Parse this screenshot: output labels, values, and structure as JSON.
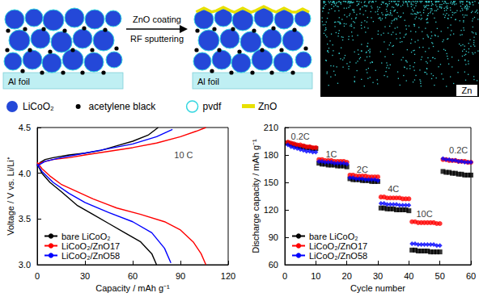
{
  "diagram": {
    "arrow_label_top": "ZnO coating",
    "arrow_label_bottom": "RF sputtering",
    "substrate_label": "Al foil",
    "map_label": "Zn",
    "legend": [
      {
        "label": "LiCoO₂",
        "color": "#2448d8"
      },
      {
        "label": "acetylene black",
        "color": "#000000"
      },
      {
        "label": "pvdf",
        "color": "#33d6e0"
      },
      {
        "label": "ZnO",
        "color": "#e8e000"
      }
    ]
  },
  "chart_data": [
    {
      "type": "line",
      "xlabel": "Capacity / mAh g⁻¹",
      "ylabel": "Voltage / V vs. Li/Li⁺",
      "xlim": [
        0,
        120
      ],
      "xticks": [
        0,
        30,
        60,
        90,
        120
      ],
      "ylim": [
        3.0,
        4.5
      ],
      "yticks": [
        {
          "value": 3.0,
          "label": "3.0"
        },
        {
          "value": 3.5,
          "label": "3.5"
        },
        {
          "value": 4.0,
          "label": "4.0"
        },
        {
          "value": 4.5,
          "label": "4.5"
        }
      ],
      "grid": false,
      "legend": "lower left",
      "annotations": [
        {
          "text": "10 C",
          "x": 92,
          "y": 4.2
        }
      ],
      "series": [
        {
          "name": "bare LiCoO₂",
          "color": "#000000",
          "x": [
            0,
            2,
            5,
            10,
            20,
            30,
            40,
            50,
            60,
            70,
            76,
            0,
            0,
            3,
            8,
            15,
            25,
            35,
            45,
            55,
            65,
            72,
            75
          ],
          "values": [
            4.08,
            4.12,
            4.15,
            4.17,
            4.2,
            4.22,
            4.25,
            4.3,
            4.35,
            4.42,
            4.5,
            null,
            4.1,
            4.0,
            3.9,
            3.8,
            3.65,
            3.55,
            3.45,
            3.35,
            3.25,
            3.12,
            3.0
          ]
        },
        {
          "name": "LiCoO₂/ZnO17",
          "color": "#ff0000",
          "x": [
            0,
            3,
            10,
            20,
            30,
            45,
            60,
            75,
            90,
            100,
            106,
            0,
            0,
            3,
            8,
            15,
            25,
            35,
            50,
            65,
            80,
            90,
            98,
            103,
            106
          ],
          "values": [
            4.1,
            4.12,
            4.15,
            4.17,
            4.2,
            4.24,
            4.28,
            4.33,
            4.4,
            4.46,
            4.5,
            null,
            4.12,
            4.05,
            3.97,
            3.88,
            3.8,
            3.72,
            3.62,
            3.55,
            3.47,
            3.38,
            3.25,
            3.12,
            3.0
          ]
        },
        {
          "name": "LiCoO₂/ZnO58",
          "color": "#0000ff",
          "x": [
            0,
            5,
            15,
            30,
            45,
            60,
            75,
            85,
            0,
            0,
            3,
            10,
            20,
            30,
            45,
            60,
            72,
            80,
            84
          ],
          "values": [
            4.08,
            4.13,
            4.17,
            4.22,
            4.27,
            4.32,
            4.4,
            4.48,
            null,
            4.1,
            4.02,
            3.9,
            3.78,
            3.68,
            3.57,
            3.47,
            3.35,
            3.18,
            3.02
          ]
        }
      ]
    },
    {
      "type": "scatter",
      "xlabel": "Cycle number",
      "ylabel": "Discharge capacity / mAh g⁻¹",
      "xlim": [
        0,
        60
      ],
      "xticks": [
        0,
        10,
        20,
        30,
        40,
        50,
        60
      ],
      "ylim": [
        60,
        210
      ],
      "yticks": [
        60,
        90,
        120,
        150,
        180,
        210
      ],
      "grid": false,
      "legend": "lower left",
      "annotations": [
        {
          "text": "0.2C",
          "x": 5,
          "y": 200
        },
        {
          "text": "1C",
          "x": 15,
          "y": 181
        },
        {
          "text": "2C",
          "x": 25,
          "y": 164
        },
        {
          "text": "4C",
          "x": 35,
          "y": 143
        },
        {
          "text": "10C",
          "x": 45,
          "y": 116
        },
        {
          "text": "0.2C",
          "x": 56,
          "y": 185
        }
      ],
      "x": [
        1,
        2,
        3,
        4,
        5,
        6,
        7,
        8,
        9,
        10,
        11,
        12,
        13,
        14,
        15,
        16,
        17,
        18,
        19,
        20,
        21,
        22,
        23,
        24,
        25,
        26,
        27,
        28,
        29,
        30,
        31,
        32,
        33,
        34,
        35,
        36,
        37,
        38,
        39,
        40,
        41,
        42,
        43,
        44,
        45,
        46,
        47,
        48,
        49,
        50,
        51,
        52,
        53,
        54,
        55,
        56,
        57,
        58,
        59,
        60
      ],
      "series": [
        {
          "name": "bare LiCoO₂",
          "color": "#000000",
          "marker": "square",
          "values": [
            193,
            192,
            191,
            190,
            189,
            189,
            188,
            188,
            187,
            187,
            171,
            170,
            170,
            169,
            169,
            169,
            168,
            168,
            168,
            167,
            154,
            153,
            153,
            153,
            152,
            152,
            152,
            151,
            151,
            151,
            122,
            122,
            121,
            121,
            121,
            120,
            120,
            120,
            120,
            119,
            76,
            76,
            75,
            75,
            75,
            75,
            74,
            74,
            74,
            74,
            162,
            161,
            161,
            160,
            160,
            159,
            159,
            158,
            158,
            158
          ]
        },
        {
          "name": "LiCoO₂/ZnO17",
          "color": "#ff0000",
          "marker": "circle",
          "values": [
            194,
            193,
            192,
            191,
            191,
            190,
            189,
            189,
            188,
            188,
            175,
            175,
            174,
            174,
            174,
            173,
            173,
            173,
            173,
            172,
            158,
            158,
            157,
            157,
            157,
            157,
            156,
            156,
            156,
            156,
            134,
            134,
            133,
            133,
            133,
            133,
            133,
            132,
            132,
            132,
            107,
            107,
            106,
            106,
            106,
            106,
            106,
            106,
            105,
            105,
            175,
            175,
            174,
            174,
            174,
            173,
            173,
            173,
            172,
            172
          ]
        },
        {
          "name": "LiCoO₂/ZnO58",
          "color": "#0000ff",
          "marker": "diamond",
          "values": [
            191,
            189,
            188,
            187,
            186,
            185,
            184,
            184,
            183,
            183,
            173,
            173,
            172,
            172,
            172,
            171,
            171,
            171,
            171,
            170,
            155,
            155,
            154,
            154,
            154,
            153,
            153,
            153,
            153,
            152,
            127,
            127,
            126,
            126,
            126,
            126,
            125,
            125,
            125,
            125,
            83,
            83,
            82,
            82,
            82,
            82,
            82,
            82,
            81,
            81,
            176,
            175,
            175,
            174,
            174,
            173,
            173,
            172,
            172,
            172
          ]
        }
      ]
    }
  ]
}
